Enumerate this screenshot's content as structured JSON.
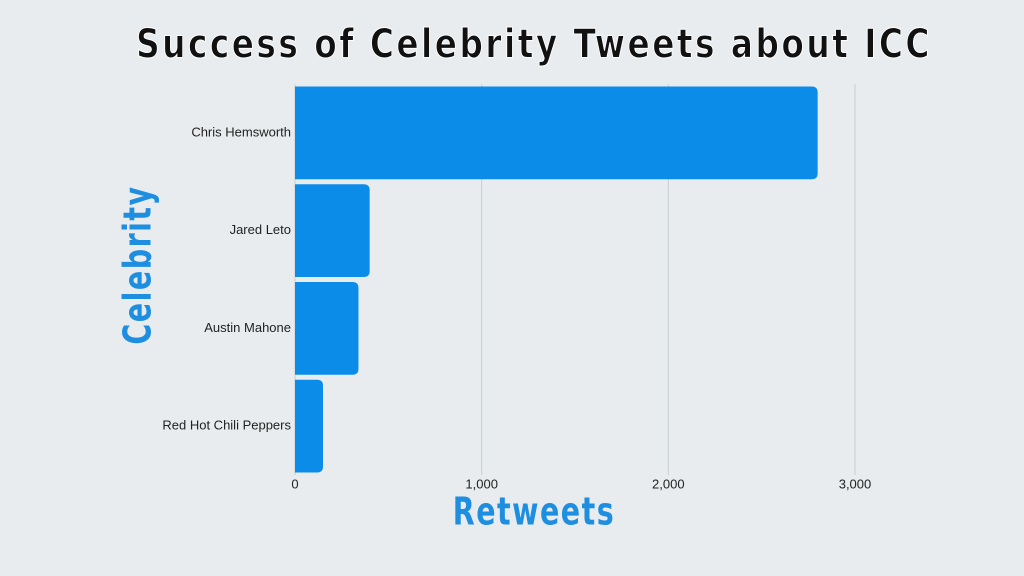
{
  "chart_data": {
    "type": "bar",
    "orientation": "horizontal",
    "title": "Success of Celebrity Tweets about ICC",
    "x_label": "Retweets",
    "y_label": "Celebrity",
    "categories": [
      "Chris Hemsworth",
      "Jared Leto",
      "Austin Mahone",
      "Red Hot Chili Peppers"
    ],
    "values": [
      2800,
      400,
      340,
      150
    ],
    "color": "#0b8ce9",
    "xlim": [
      0,
      3000
    ],
    "xticks": [
      0,
      {
        "value": 1000,
        "label": "1,000"
      },
      {
        "value": 2000,
        "label": "2,000"
      },
      {
        "value": 3000,
        "label": "3,000"
      }
    ],
    "grid": true
  }
}
